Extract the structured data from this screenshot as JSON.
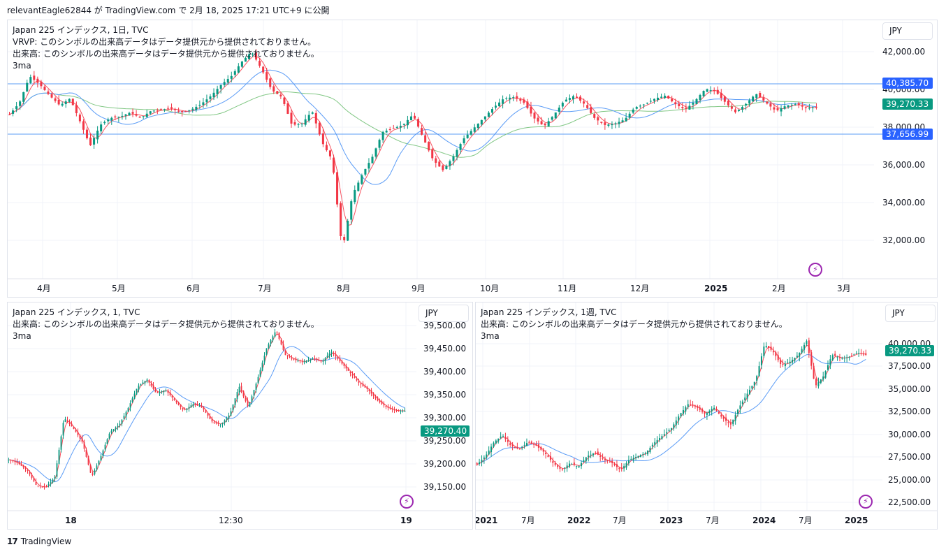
{
  "header": {
    "text": "relevantEagle62844 が TradingView.com で 2月 18, 2025 17:21 UTC+9 に公開"
  },
  "colors": {
    "up": "#089981",
    "down": "#f23645",
    "ma_fast": "#f7525f",
    "ma_mid": "#5b9cf6",
    "ma_slow": "#81c784",
    "hline": "#5b9cf6",
    "grid": "#f0f3fa",
    "axis_text": "#131722",
    "last_badge": "#089981",
    "level_badge": "#2962ff"
  },
  "main": {
    "legend": [
      "Japan 225 インデックス, 1日, TVC",
      "VRVP: このシンボルの出来高データはデータ提供元から提供されておりません。",
      "出来高: このシンボルの出来高データはデータ提供元から提供されておりません。",
      "3ma"
    ],
    "currency": "JPY",
    "price_axis": [
      "42,000.00",
      "40,000.00",
      "38,000.00",
      "36,000.00",
      "34,000.00",
      "32,000.00"
    ],
    "level_labels": [
      "40,385.70",
      "39,270.33",
      "37,656.99"
    ],
    "time_axis": [
      "4月",
      "5月",
      "6月",
      "7月",
      "8月",
      "9月",
      "10月",
      "11月",
      "12月",
      "2025",
      "2月",
      "3月"
    ]
  },
  "intraday": {
    "legend": [
      "Japan 225 インデックス, 1, TVC",
      "出来高: このシンボルの出来高データはデータ提供元から提供されておりません。",
      "3ma"
    ],
    "currency": "JPY",
    "price_axis": [
      "39,500.00",
      "39,450.00",
      "39,400.00",
      "39,350.00",
      "39,300.00",
      "39,250.00",
      "39,200.00",
      "39,150.00"
    ],
    "last_label": "39,270.40",
    "time_axis": [
      "18",
      "12:30",
      "19"
    ]
  },
  "weekly": {
    "legend": [
      "Japan 225 インデックス, 1週, TVC",
      "出来高: このシンボルの出来高データはデータ提供元から提供されておりません。",
      "3ma"
    ],
    "currency": "JPY",
    "price_axis": [
      "40,000.00",
      "37,500.00",
      "35,000.00",
      "32,500.00",
      "30,000.00",
      "27,500.00",
      "25,000.00",
      "22,500.00"
    ],
    "last_label": "39,270.33",
    "time_axis": [
      "2021",
      "7月",
      "2022",
      "7月",
      "2023",
      "7月",
      "2024",
      "7月",
      "2025"
    ]
  },
  "footer": {
    "logo_mark": "17",
    "brand": "TradingView"
  }
}
